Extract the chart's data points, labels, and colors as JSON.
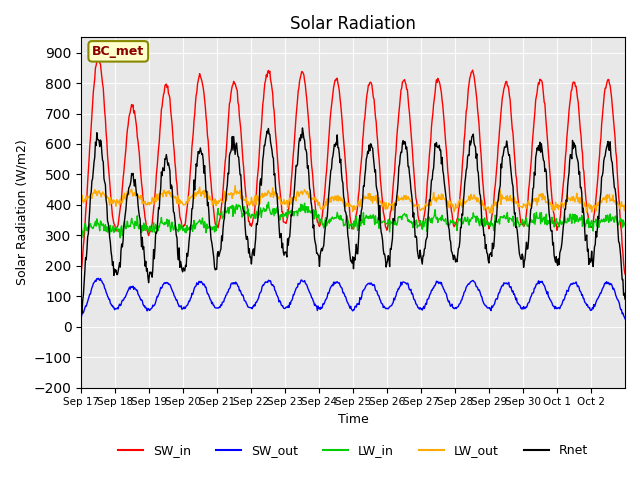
{
  "title": "Solar Radiation",
  "ylabel": "Solar Radiation (W/m2)",
  "xlabel": "Time",
  "ylim": [
    -200,
    950
  ],
  "yticks": [
    -200,
    -100,
    0,
    100,
    200,
    300,
    400,
    500,
    600,
    700,
    800,
    900
  ],
  "background_color": "#e8e8e8",
  "annotation_text": "BC_met",
  "annotation_bg": "#ffffcc",
  "annotation_border": "#888800",
  "line_colors": {
    "SW_in": "#ff0000",
    "SW_out": "#0000ff",
    "LW_in": "#00cc00",
    "LW_out": "#ffaa00",
    "Rnet": "#000000"
  },
  "legend_labels": [
    "SW_in",
    "SW_out",
    "LW_in",
    "LW_out",
    "Rnet"
  ],
  "x_tick_labels": [
    "Sep 17",
    "Sep 18",
    "Sep 19",
    "Sep 20",
    "Sep 21",
    "Sep 22",
    "Sep 23",
    "Sep 24",
    "Sep 25",
    "Sep 26",
    "Sep 27",
    "Sep 28",
    "Sep 29",
    "Sep 30",
    "Oct 1",
    "Oct 2"
  ],
  "n_days": 16,
  "pts_per_day": 48
}
